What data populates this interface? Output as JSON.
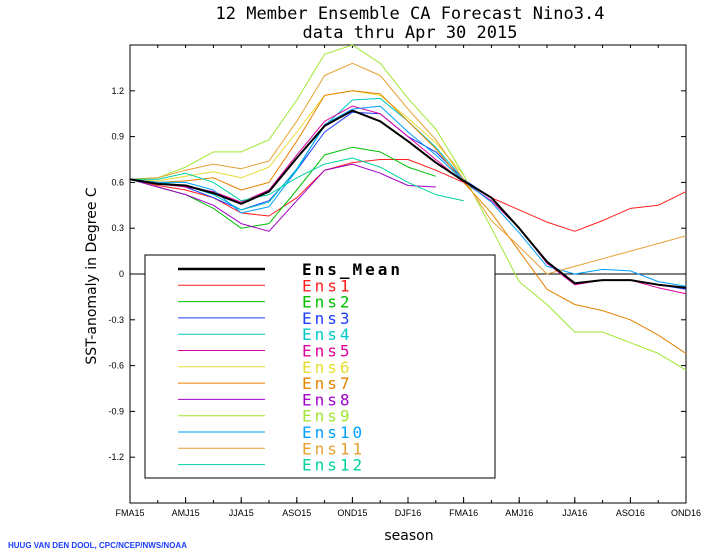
{
  "credit": "HUUG VAN DEN DOOL, CPC/NCEP/NWS/NOAA",
  "chart_data": {
    "type": "line",
    "title": "12 Member Ensemble CA Forecast Nino3.4",
    "subtitle": "data thru Apr 30 2015",
    "xlabel": "season",
    "ylabel": "SST-anomaly in Degree C",
    "ylim": [
      -1.5,
      1.5
    ],
    "yticks": [
      1.2,
      0.9,
      0.6,
      0.3,
      0,
      -0.3,
      -0.6,
      -0.9,
      -1.2
    ],
    "ytick_labels": [
      "1.2",
      "0.9",
      "0.6",
      "0.3",
      "0",
      "-0.3",
      "-0.6",
      "-0.9",
      "-1.2"
    ],
    "xtick_labels": [
      "FMA15",
      "AMJ15",
      "JJA15",
      "ASO15",
      "OND15",
      "DJF16",
      "FMA16",
      "AMJ16",
      "JJA16",
      "ASO16",
      "OND16"
    ],
    "xtick_positions": [
      0,
      2,
      4,
      6,
      8,
      10,
      12,
      14,
      16,
      18,
      20
    ],
    "zero_line": true,
    "grid": false,
    "legend_position": "lower-left",
    "series": [
      {
        "name": "Ens_Mean",
        "color": "#000000",
        "values": [
          0.62,
          0.59,
          0.58,
          0.53,
          0.46,
          0.54,
          0.76,
          0.97,
          1.07,
          1.0,
          0.87,
          0.73,
          0.61,
          0.5,
          0.3,
          0.08,
          -0.06,
          -0.04,
          -0.04,
          -0.07,
          -0.09
        ]
      },
      {
        "name": "Ens1",
        "color": "#ff1e1e",
        "values": [
          0.62,
          0.58,
          0.55,
          0.5,
          0.4,
          0.38,
          0.5,
          0.68,
          0.73,
          0.75,
          0.75,
          0.68,
          0.6,
          0.5,
          0.42,
          0.34,
          0.28,
          0.35,
          0.43,
          0.45,
          0.54
        ]
      },
      {
        "name": "Ens2",
        "color": "#00c000",
        "values": [
          0.62,
          0.57,
          0.52,
          0.43,
          0.3,
          0.33,
          0.55,
          0.78,
          0.83,
          0.8,
          0.7,
          0.64,
          null,
          null,
          null,
          null,
          null,
          null,
          null,
          null,
          null
        ]
      },
      {
        "name": "Ens3",
        "color": "#1e3cff",
        "values": [
          0.62,
          0.6,
          0.57,
          0.5,
          0.42,
          0.48,
          0.68,
          0.93,
          1.06,
          1.05,
          0.9,
          0.8,
          0.62,
          0.5,
          0.3,
          0.08,
          -0.06,
          -0.04,
          -0.04,
          -0.07,
          -0.1
        ]
      },
      {
        "name": "Ens4",
        "color": "#00c8c8",
        "values": [
          0.62,
          0.6,
          0.58,
          0.52,
          0.42,
          0.47,
          0.69,
          0.97,
          1.14,
          1.15,
          1.0,
          0.83,
          0.62,
          null,
          null,
          null,
          null,
          null,
          null,
          null,
          null
        ]
      },
      {
        "name": "Ens5",
        "color": "#e000a0",
        "values": [
          0.62,
          0.59,
          0.57,
          0.54,
          0.47,
          0.55,
          0.78,
          1.0,
          1.1,
          1.05,
          0.9,
          0.75,
          0.6,
          0.48,
          0.3,
          0.07,
          -0.07,
          -0.04,
          -0.04,
          -0.09,
          -0.13
        ]
      },
      {
        "name": "Ens6",
        "color": "#e6dc32",
        "values": [
          0.62,
          0.61,
          0.64,
          0.67,
          0.63,
          0.7,
          0.93,
          1.17,
          1.2,
          1.17,
          1.02,
          0.86,
          0.65,
          null,
          null,
          null,
          null,
          null,
          null,
          null,
          null
        ]
      },
      {
        "name": "Ens7",
        "color": "#e68200",
        "values": [
          0.62,
          0.6,
          0.61,
          0.63,
          0.55,
          0.6,
          0.87,
          1.17,
          1.2,
          1.18,
          1.0,
          0.82,
          0.6,
          0.4,
          0.15,
          -0.1,
          -0.2,
          -0.24,
          -0.3,
          -0.4,
          -0.52
        ]
      },
      {
        "name": "Ens8",
        "color": "#a000c8",
        "values": [
          0.62,
          0.57,
          0.52,
          0.45,
          0.33,
          0.28,
          0.48,
          0.68,
          0.72,
          0.66,
          0.58,
          0.57,
          null,
          null,
          null,
          null,
          null,
          null,
          null,
          null,
          null
        ]
      },
      {
        "name": "Ens9",
        "color": "#a0e632",
        "values": [
          0.62,
          0.63,
          0.7,
          0.8,
          0.8,
          0.88,
          1.14,
          1.44,
          1.5,
          1.38,
          1.15,
          0.95,
          0.65,
          0.3,
          -0.05,
          -0.2,
          -0.38,
          -0.38,
          -0.45,
          -0.52,
          -0.63
        ]
      },
      {
        "name": "Ens10",
        "color": "#00a0ff",
        "values": [
          0.62,
          0.6,
          0.6,
          0.55,
          0.4,
          0.44,
          0.68,
          0.98,
          1.08,
          1.1,
          0.93,
          0.78,
          0.61,
          0.47,
          0.27,
          0.05,
          0.0,
          0.03,
          0.02,
          -0.05,
          -0.08
        ]
      },
      {
        "name": "Ens11",
        "color": "#e6a032",
        "values": [
          0.62,
          0.63,
          0.68,
          0.72,
          0.69,
          0.74,
          1.0,
          1.3,
          1.38,
          1.3,
          1.08,
          0.88,
          0.62,
          0.35,
          0.18,
          0.0,
          0.05,
          0.1,
          0.15,
          0.2,
          0.25
        ]
      },
      {
        "name": "Ens12",
        "color": "#00d2a0",
        "values": [
          0.62,
          0.62,
          0.66,
          0.6,
          0.48,
          0.52,
          0.63,
          0.72,
          0.76,
          0.7,
          0.6,
          0.52,
          0.48,
          null,
          null,
          null,
          null,
          null,
          null,
          null,
          null
        ]
      }
    ]
  }
}
